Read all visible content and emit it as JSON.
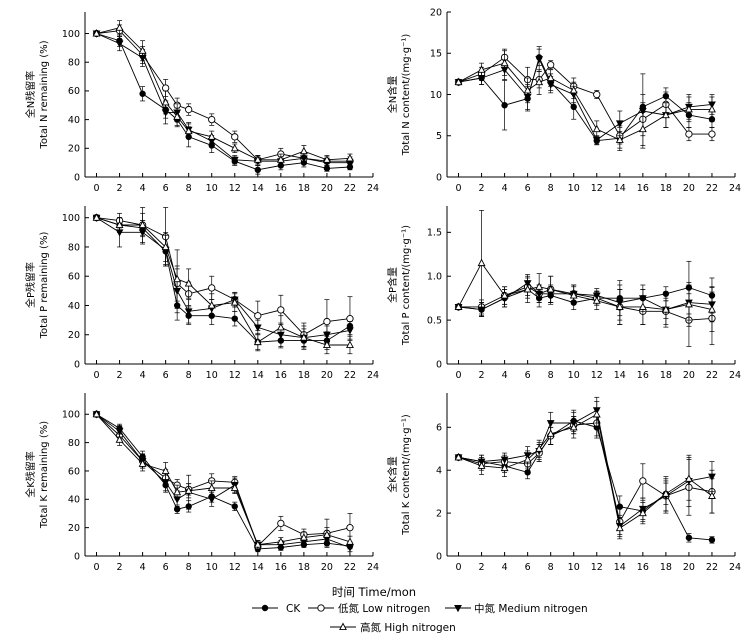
{
  "figure": {
    "xlabel": "时间 Time/mon",
    "legend": [
      {
        "series": "CK",
        "label": "CK",
        "marker": "filled-circle"
      },
      {
        "series": "low",
        "label": "低氮  Low nitrogen",
        "marker": "open-circle"
      },
      {
        "series": "medium",
        "label": "中氮 Medium nitrogen",
        "marker": "filled-triangle-down"
      },
      {
        "series": "high",
        "label": "高氮 High nitrogen",
        "marker": "open-triangle-up"
      }
    ],
    "colors": {
      "line": "#000000",
      "background": "#ffffff"
    }
  },
  "chart_data": [
    {
      "id": "n-remaining",
      "type": "line",
      "ylabel_cn": "全N残留率",
      "ylabel_en": "Total N remaining (%)",
      "x": [
        0,
        2,
        4,
        6,
        7,
        8,
        10,
        12,
        14,
        16,
        18,
        20,
        22
      ],
      "xticks": [
        0,
        2,
        4,
        6,
        8,
        10,
        12,
        14,
        16,
        18,
        20,
        22,
        24
      ],
      "xticklabels": [
        "0",
        "2",
        "4",
        "6",
        "8",
        "10",
        "12",
        "14",
        "16",
        "18",
        "20",
        "22",
        "24"
      ],
      "xlim": [
        -1,
        24
      ],
      "ylim": [
        0,
        115
      ],
      "yticks": [
        0,
        20,
        40,
        60,
        80,
        100
      ],
      "yticklabels": [
        "0",
        "20",
        "40",
        "60",
        "80",
        "100"
      ],
      "series": [
        {
          "name": "CK",
          "values": [
            100,
            95,
            58,
            47,
            40,
            28,
            22,
            11,
            5,
            8,
            10,
            6,
            7
          ],
          "errors": [
            1,
            4,
            5,
            6,
            5,
            7,
            5,
            3,
            3,
            3,
            3,
            2,
            2
          ]
        },
        {
          "name": "low",
          "values": [
            100,
            102,
            85,
            62,
            50,
            47,
            40,
            28,
            12,
            16,
            13,
            11,
            11
          ],
          "errors": [
            1,
            4,
            6,
            6,
            5,
            4,
            4,
            4,
            3,
            4,
            3,
            3,
            3
          ]
        },
        {
          "name": "medium",
          "values": [
            100,
            93,
            83,
            45,
            45,
            33,
            25,
            12,
            11,
            11,
            13,
            10,
            10
          ],
          "errors": [
            1,
            5,
            6,
            8,
            6,
            5,
            4,
            3,
            3,
            3,
            3,
            3,
            3
          ]
        },
        {
          "name": "high",
          "values": [
            100,
            104,
            88,
            52,
            42,
            32,
            28,
            20,
            12,
            12,
            18,
            12,
            13
          ],
          "errors": [
            1,
            5,
            7,
            8,
            6,
            5,
            4,
            3,
            3,
            4,
            4,
            3,
            3
          ]
        }
      ]
    },
    {
      "id": "n-content",
      "type": "line",
      "ylabel_cn": "全N含量",
      "ylabel_en": "Total N content/(mg·g⁻¹)",
      "x": [
        0,
        2,
        4,
        6,
        7,
        8,
        10,
        12,
        14,
        16,
        18,
        20,
        22
      ],
      "xticks": [
        0,
        2,
        4,
        6,
        8,
        10,
        12,
        14,
        16,
        18,
        20,
        22,
        24
      ],
      "xticklabels": [
        "0",
        "2",
        "4",
        "6",
        "8",
        "10",
        "12",
        "14",
        "16",
        "18",
        "20",
        "22",
        "24"
      ],
      "xlim": [
        -1,
        24
      ],
      "ylim": [
        0,
        20
      ],
      "yticks": [
        0,
        5,
        10,
        15,
        20
      ],
      "yticklabels": [
        "0",
        "5",
        "10",
        "15",
        "20"
      ],
      "series": [
        {
          "name": "CK",
          "values": [
            11.5,
            12.0,
            8.7,
            9.5,
            14.5,
            11.5,
            8.5,
            4.4,
            4.7,
            8.5,
            9.8,
            7.5,
            7.0
          ],
          "errors": [
            0.3,
            0.8,
            3.0,
            1.5,
            1.0,
            1.0,
            1.5,
            0.5,
            1.5,
            1.5,
            1.0,
            1.5,
            1.0
          ]
        },
        {
          "name": "low",
          "values": [
            11.5,
            12.5,
            14.5,
            11.8,
            11.8,
            13.6,
            11.0,
            10.0,
            5.0,
            7.0,
            8.8,
            5.2,
            5.2
          ],
          "errors": [
            0.3,
            0.8,
            1.0,
            1.5,
            1.0,
            0.5,
            1.0,
            0.5,
            1.0,
            2.0,
            1.5,
            0.8,
            0.8
          ]
        },
        {
          "name": "medium",
          "values": [
            11.5,
            12.0,
            13.0,
            9.7,
            14.3,
            11.2,
            10.0,
            4.5,
            6.5,
            8.0,
            7.5,
            8.5,
            8.8
          ],
          "errors": [
            0.3,
            0.8,
            1.2,
            1.5,
            1.5,
            1.0,
            1.0,
            0.5,
            1.5,
            4.5,
            1.5,
            1.5,
            1.2
          ]
        },
        {
          "name": "high",
          "values": [
            11.5,
            13.0,
            13.8,
            10.5,
            11.5,
            12.0,
            10.5,
            5.8,
            4.5,
            5.8,
            7.5,
            8.2,
            8.2
          ],
          "errors": [
            0.3,
            0.8,
            1.5,
            1.5,
            1.5,
            1.0,
            1.0,
            1.0,
            1.0,
            2.0,
            1.5,
            1.5,
            1.5
          ]
        }
      ]
    },
    {
      "id": "p-remaining",
      "type": "line",
      "ylabel_cn": "全P残留率",
      "ylabel_en": "Total P remaining (%)",
      "x": [
        0,
        2,
        4,
        6,
        7,
        8,
        10,
        12,
        14,
        16,
        18,
        20,
        22
      ],
      "xticks": [
        0,
        2,
        4,
        6,
        8,
        10,
        12,
        14,
        16,
        18,
        20,
        22,
        24
      ],
      "xticklabels": [
        "0",
        "2",
        "4",
        "6",
        "8",
        "10",
        "12",
        "14",
        "16",
        "18",
        "20",
        "22",
        "24"
      ],
      "xlim": [
        -1,
        24
      ],
      "ylim": [
        0,
        108
      ],
      "yticks": [
        0,
        20,
        40,
        60,
        80,
        100
      ],
      "yticklabels": [
        "0",
        "20",
        "40",
        "60",
        "80",
        "100"
      ],
      "series": [
        {
          "name": "CK",
          "values": [
            100,
            95,
            93,
            77,
            40,
            33,
            33,
            31,
            15,
            16,
            16,
            16,
            26
          ],
          "errors": [
            1,
            5,
            5,
            10,
            10,
            6,
            6,
            5,
            5,
            5,
            5,
            6,
            6
          ]
        },
        {
          "name": "low",
          "values": [
            100,
            98,
            95,
            87,
            55,
            48,
            52,
            44,
            33,
            37,
            20,
            29,
            31
          ],
          "errors": [
            1,
            5,
            8,
            20,
            12,
            8,
            8,
            5,
            10,
            10,
            8,
            15,
            15
          ]
        },
        {
          "name": "medium",
          "values": [
            100,
            90,
            90,
            78,
            50,
            36,
            38,
            44,
            25,
            20,
            18,
            20,
            23
          ],
          "errors": [
            1,
            10,
            8,
            10,
            15,
            8,
            6,
            5,
            5,
            8,
            6,
            6,
            6
          ]
        },
        {
          "name": "high",
          "values": [
            100,
            95,
            95,
            80,
            58,
            55,
            40,
            42,
            15,
            25,
            18,
            13,
            13
          ],
          "errors": [
            1,
            5,
            12,
            10,
            20,
            10,
            8,
            6,
            6,
            8,
            8,
            6,
            6
          ]
        }
      ]
    },
    {
      "id": "p-content",
      "type": "line",
      "ylabel_cn": "全P含量",
      "ylabel_en": "Total P content/(mg·g⁻¹)",
      "x": [
        0,
        2,
        4,
        6,
        7,
        8,
        10,
        12,
        14,
        16,
        18,
        20,
        22
      ],
      "xticks": [
        0,
        2,
        4,
        6,
        8,
        10,
        12,
        14,
        16,
        18,
        20,
        22,
        24
      ],
      "xticklabels": [
        "0",
        "2",
        "4",
        "6",
        "8",
        "10",
        "12",
        "14",
        "16",
        "18",
        "20",
        "22",
        "24"
      ],
      "xlim": [
        -1,
        24
      ],
      "ylim": [
        0,
        1.8
      ],
      "yticks": [
        0,
        0.5,
        1.0,
        1.5
      ],
      "yticklabels": [
        "0",
        "0.5",
        "1.0",
        "1.5"
      ],
      "series": [
        {
          "name": "CK",
          "values": [
            0.65,
            0.62,
            0.75,
            0.85,
            0.75,
            0.78,
            0.7,
            0.75,
            0.75,
            0.75,
            0.8,
            0.87,
            0.78
          ],
          "errors": [
            0.02,
            0.08,
            0.1,
            0.1,
            0.1,
            0.1,
            0.08,
            0.08,
            0.2,
            0.1,
            0.08,
            0.3,
            0.2
          ]
        },
        {
          "name": "low",
          "values": [
            0.65,
            0.65,
            0.78,
            0.88,
            0.8,
            0.85,
            0.8,
            0.75,
            0.65,
            0.6,
            0.6,
            0.5,
            0.52
          ],
          "errors": [
            0.02,
            0.08,
            0.1,
            0.1,
            0.1,
            0.15,
            0.1,
            0.08,
            0.2,
            0.15,
            0.15,
            0.3,
            0.3
          ]
        },
        {
          "name": "medium",
          "values": [
            0.65,
            0.62,
            0.75,
            0.92,
            0.8,
            0.8,
            0.8,
            0.78,
            0.7,
            0.75,
            0.62,
            0.7,
            0.68
          ],
          "errors": [
            0.02,
            0.08,
            0.1,
            0.1,
            0.1,
            0.1,
            0.1,
            0.08,
            0.2,
            0.15,
            0.1,
            0.2,
            0.2
          ]
        },
        {
          "name": "high",
          "values": [
            0.65,
            1.15,
            0.78,
            0.85,
            0.88,
            0.85,
            0.78,
            0.72,
            0.65,
            0.65,
            0.62,
            0.68,
            0.62
          ],
          "errors": [
            0.02,
            0.6,
            0.1,
            0.15,
            0.15,
            0.15,
            0.1,
            0.1,
            0.2,
            0.2,
            0.2,
            0.25,
            0.25
          ]
        }
      ]
    },
    {
      "id": "k-remaining",
      "type": "line",
      "ylabel_cn": "全K残留率",
      "ylabel_en": "Total K remaining (%)",
      "x": [
        0,
        2,
        4,
        6,
        7,
        8,
        10,
        12,
        14,
        16,
        18,
        20,
        22
      ],
      "xticks": [
        0,
        2,
        4,
        6,
        8,
        10,
        12,
        14,
        16,
        18,
        20,
        22,
        24
      ],
      "xticklabels": [
        "0",
        "2",
        "4",
        "6",
        "8",
        "10",
        "12",
        "14",
        "16",
        "18",
        "20",
        "22",
        "24"
      ],
      "xlim": [
        -1,
        24
      ],
      "ylim": [
        0,
        115
      ],
      "yticks": [
        0,
        20,
        40,
        60,
        80,
        100
      ],
      "yticklabels": [
        "0",
        "20",
        "40",
        "60",
        "80",
        "100"
      ],
      "series": [
        {
          "name": "CK",
          "values": [
            100,
            90,
            70,
            50,
            33,
            35,
            42,
            35,
            5,
            6,
            8,
            9,
            7
          ],
          "errors": [
            1,
            3,
            4,
            5,
            3,
            4,
            4,
            3,
            2,
            2,
            2,
            2,
            2
          ]
        },
        {
          "name": "low",
          "values": [
            100,
            85,
            67,
            55,
            50,
            47,
            53,
            52,
            7,
            23,
            15,
            16,
            20
          ],
          "errors": [
            1,
            4,
            5,
            6,
            4,
            4,
            5,
            4,
            3,
            5,
            4,
            10,
            10
          ]
        },
        {
          "name": "medium",
          "values": [
            100,
            88,
            67,
            52,
            40,
            45,
            40,
            50,
            8,
            8,
            10,
            12,
            6
          ],
          "errors": [
            1,
            4,
            5,
            6,
            5,
            12,
            5,
            5,
            3,
            3,
            3,
            4,
            3
          ]
        },
        {
          "name": "high",
          "values": [
            100,
            82,
            65,
            60,
            45,
            46,
            48,
            48,
            8,
            10,
            13,
            15,
            10
          ],
          "errors": [
            1,
            4,
            5,
            6,
            5,
            5,
            5,
            4,
            3,
            3,
            4,
            5,
            4
          ]
        }
      ]
    },
    {
      "id": "k-content",
      "type": "line",
      "ylabel_cn": "全K含量",
      "ylabel_en": "Total K content/(mg·g⁻¹)",
      "x": [
        0,
        2,
        4,
        6,
        7,
        8,
        10,
        12,
        14,
        16,
        18,
        20,
        22
      ],
      "xticks": [
        0,
        2,
        4,
        6,
        8,
        10,
        12,
        14,
        16,
        18,
        20,
        22,
        24
      ],
      "xticklabels": [
        "0",
        "2",
        "4",
        "6",
        "8",
        "10",
        "12",
        "14",
        "16",
        "18",
        "20",
        "22",
        "24"
      ],
      "xlim": [
        -1,
        24
      ],
      "ylim": [
        0,
        7.6
      ],
      "yticks": [
        0,
        2,
        4,
        6
      ],
      "yticklabels": [
        "0",
        "2",
        "4",
        "6"
      ],
      "series": [
        {
          "name": "CK",
          "values": [
            4.6,
            4.4,
            4.2,
            3.9,
            4.8,
            5.6,
            6.3,
            6.0,
            2.3,
            2.1,
            2.9,
            0.85,
            0.75
          ],
          "errors": [
            0.1,
            0.3,
            0.3,
            0.3,
            0.4,
            0.4,
            0.5,
            0.5,
            0.5,
            0.5,
            0.5,
            0.2,
            0.15
          ]
        },
        {
          "name": "low",
          "values": [
            4.6,
            4.3,
            4.4,
            4.3,
            4.8,
            5.6,
            6.1,
            6.2,
            1.6,
            3.5,
            2.8,
            3.2,
            3.0
          ],
          "errors": [
            0.1,
            0.3,
            0.3,
            0.3,
            0.4,
            0.4,
            0.4,
            0.6,
            0.6,
            0.8,
            0.8,
            1.3,
            1.0
          ]
        },
        {
          "name": "medium",
          "values": [
            4.6,
            4.4,
            4.5,
            4.7,
            4.9,
            6.2,
            6.2,
            6.8,
            1.4,
            2.2,
            2.8,
            3.5,
            3.7
          ],
          "errors": [
            0.1,
            0.3,
            0.3,
            0.4,
            0.4,
            0.5,
            0.5,
            0.6,
            0.5,
            0.5,
            0.7,
            1.2,
            0.7
          ]
        },
        {
          "name": "high",
          "values": [
            4.6,
            4.2,
            4.1,
            4.5,
            5.0,
            5.7,
            6.0,
            6.6,
            1.3,
            2.0,
            2.9,
            3.6,
            2.8
          ],
          "errors": [
            0.1,
            0.4,
            0.4,
            0.4,
            0.4,
            0.5,
            0.5,
            0.6,
            0.5,
            0.5,
            0.8,
            1.0,
            0.8
          ]
        }
      ]
    }
  ]
}
